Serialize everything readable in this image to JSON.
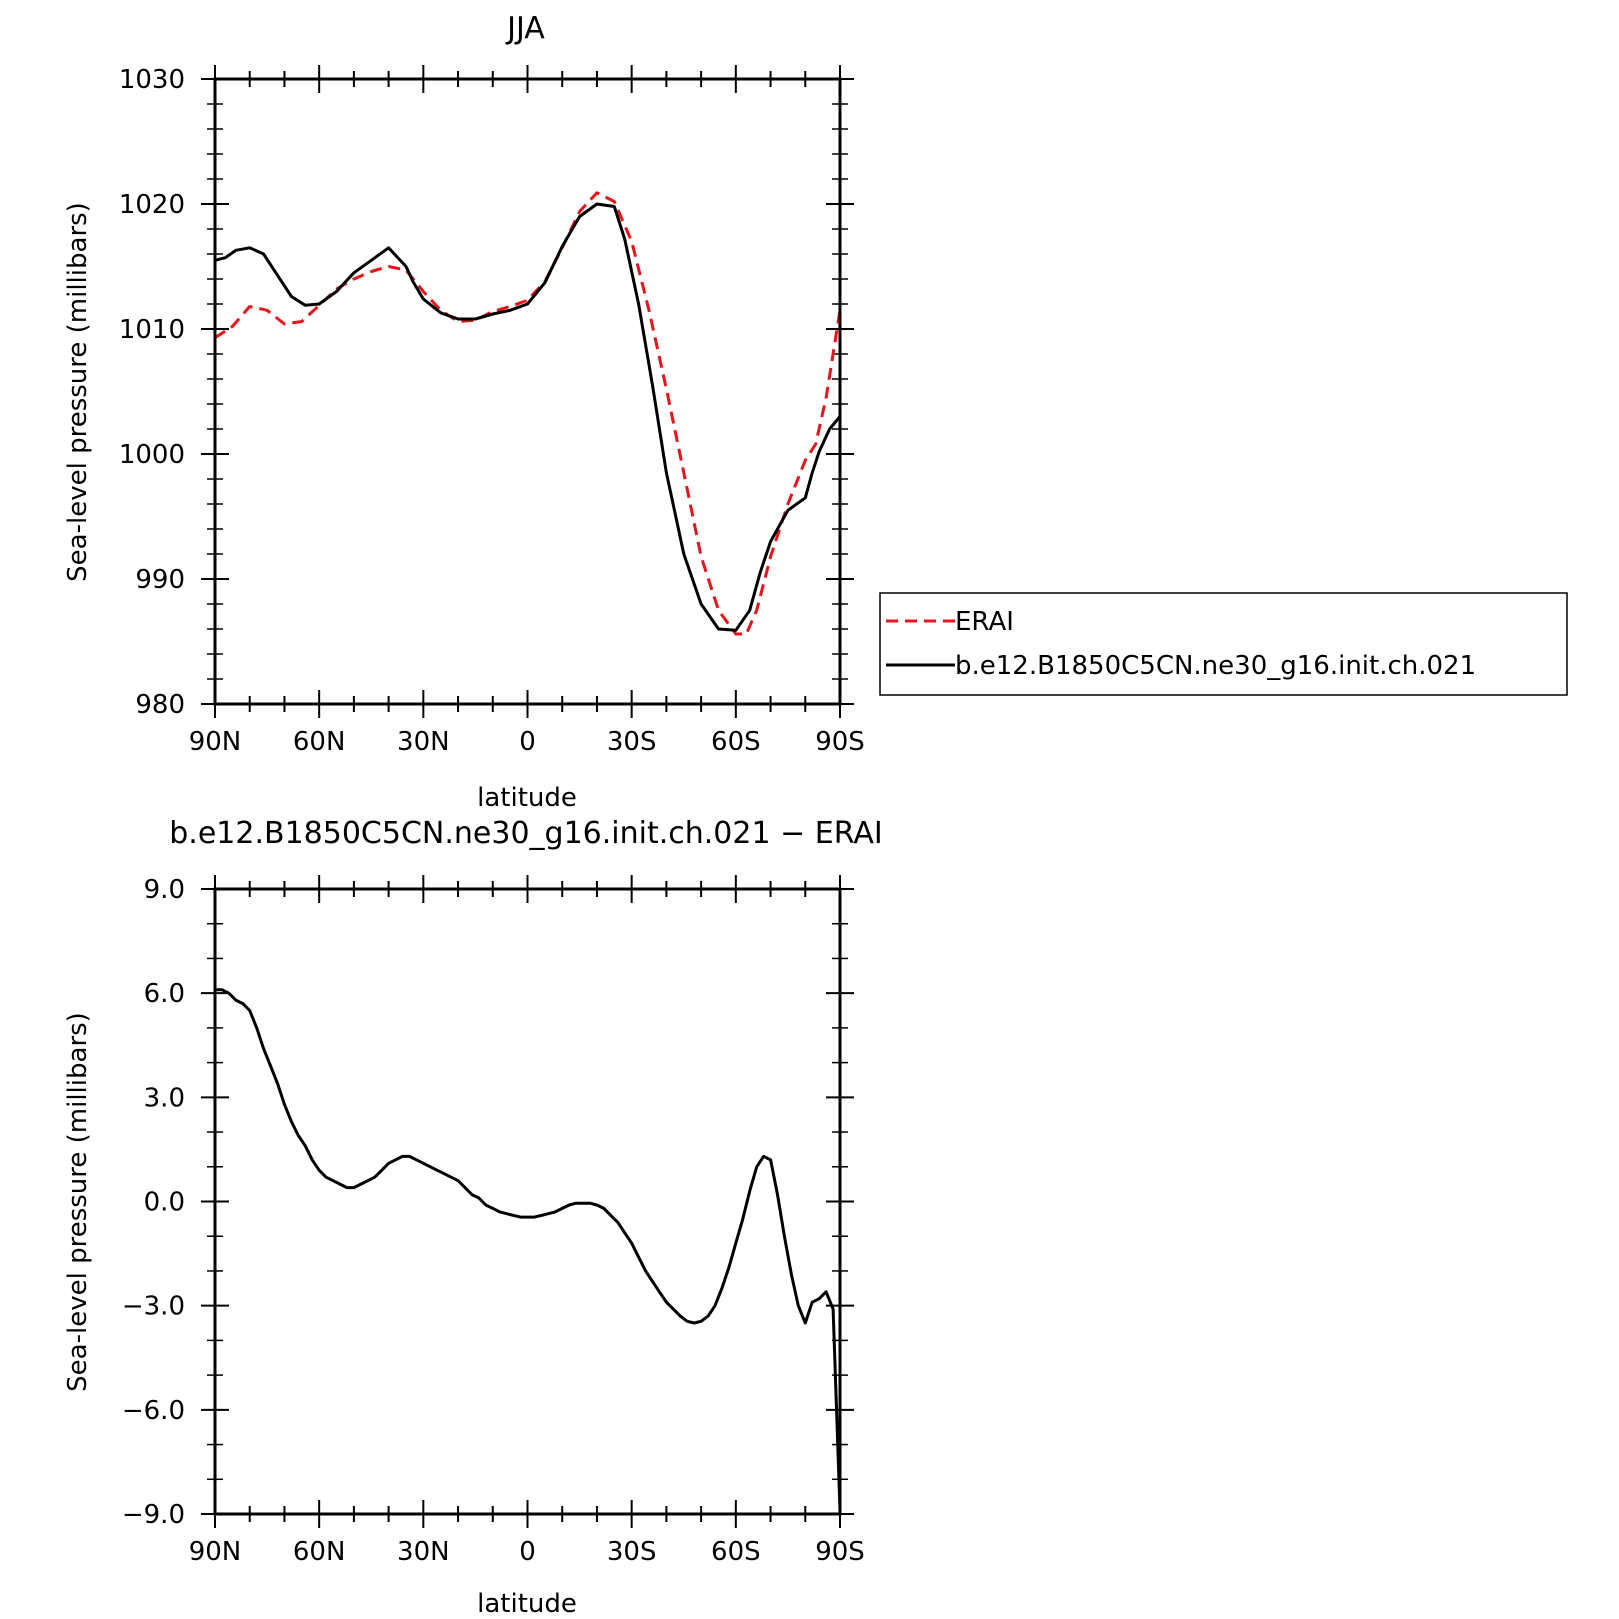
{
  "chart_data": [
    {
      "type": "line",
      "title": "JJA",
      "xlabel": "latitude",
      "ylabel": "Sea-level pressure (millibars)",
      "x_tick_labels": [
        "90N",
        "60N",
        "30N",
        "0",
        "30S",
        "60S",
        "90S"
      ],
      "x_ticks": [
        90,
        60,
        30,
        0,
        -30,
        -60,
        -90
      ],
      "xlim": [
        90,
        -90
      ],
      "ylim": [
        980,
        1030
      ],
      "y_tick_labels": [
        "980",
        "990",
        "1000",
        "1010",
        "1020",
        "1030"
      ],
      "y_ticks": [
        980,
        990,
        1000,
        1010,
        1020,
        1030
      ],
      "grid": false,
      "legend": "right",
      "series": [
        {
          "name": "ERAI",
          "color": "#e8141b",
          "dash": "dashed",
          "x": [
            90,
            85,
            80,
            75,
            70,
            65,
            60,
            55,
            50,
            45,
            40,
            35,
            30,
            25,
            20,
            15,
            10,
            5,
            0,
            -5,
            -10,
            -15,
            -20,
            -25,
            -30,
            -35,
            -40,
            -45,
            -50,
            -55,
            -60,
            -63,
            -66,
            -70,
            -75,
            -80,
            -83,
            -86,
            -90
          ],
          "y": [
            1009.3,
            1010.2,
            1011.8,
            1011.5,
            1010.4,
            1010.6,
            1011.9,
            1013.2,
            1014.0,
            1014.6,
            1015.0,
            1014.7,
            1013.0,
            1011.5,
            1010.6,
            1010.7,
            1011.4,
            1011.8,
            1012.3,
            1013.8,
            1016.5,
            1019.4,
            1020.9,
            1020.2,
            1017.0,
            1011.5,
            1005.2,
            998.5,
            991.8,
            987.5,
            985.6,
            985.6,
            987.5,
            991.8,
            996.0,
            999.5,
            1000.8,
            1004.5,
            1011.5
          ]
        },
        {
          "name": "b.e12.B1850C5CN.ne30_g16.init.ch.021",
          "color": "#000000",
          "dash": "solid",
          "x": [
            90,
            87,
            84,
            80,
            76,
            72,
            68,
            64,
            60,
            55,
            50,
            45,
            40,
            35,
            33,
            30,
            25,
            20,
            15,
            10,
            5,
            0,
            -5,
            -10,
            -15,
            -20,
            -25,
            -28,
            -32,
            -36,
            -40,
            -45,
            -50,
            -55,
            -60,
            -64,
            -67,
            -70,
            -75,
            -80,
            -82,
            -84,
            -87,
            -90
          ],
          "y": [
            1015.5,
            1015.7,
            1016.3,
            1016.5,
            1016.0,
            1014.3,
            1012.6,
            1011.9,
            1012.0,
            1013.0,
            1014.5,
            1015.5,
            1016.5,
            1015.0,
            1013.8,
            1012.4,
            1011.3,
            1010.8,
            1010.8,
            1011.2,
            1011.5,
            1012.0,
            1013.7,
            1016.6,
            1019.0,
            1020.0,
            1019.8,
            1017.2,
            1012.0,
            1005.5,
            998.5,
            992.0,
            988.0,
            986.0,
            985.9,
            987.5,
            990.5,
            993.0,
            995.5,
            996.5,
            998.5,
            1000.2,
            1002.0,
            1003.0
          ]
        }
      ]
    },
    {
      "type": "line",
      "title": "b.e12.B1850C5CN.ne30_g16.init.ch.021 − ERAI",
      "xlabel": "latitude",
      "ylabel": "Sea-level pressure (millibars)",
      "x_tick_labels": [
        "90N",
        "60N",
        "30N",
        "0",
        "30S",
        "60S",
        "90S"
      ],
      "x_ticks": [
        90,
        60,
        30,
        0,
        -30,
        -60,
        -90
      ],
      "xlim": [
        90,
        -90
      ],
      "ylim": [
        -9,
        9
      ],
      "y_tick_labels": [
        "−9.0",
        "−6.0",
        "−3.0",
        "0.0",
        "3.0",
        "6.0",
        "9.0"
      ],
      "y_ticks": [
        -9,
        -6,
        -3,
        0,
        3,
        6,
        9
      ],
      "grid": false,
      "series": [
        {
          "color": "#000000",
          "dash": "solid",
          "x": [
            90,
            88,
            86,
            84,
            82,
            80,
            78,
            76,
            74,
            72,
            70,
            68,
            66,
            64,
            62,
            60,
            58,
            56,
            54,
            52,
            50,
            48,
            46,
            44,
            42,
            40,
            38,
            36,
            34,
            32,
            30,
            28,
            26,
            24,
            22,
            20,
            18,
            16,
            14,
            12,
            10,
            8,
            6,
            4,
            2,
            0,
            -2,
            -4,
            -6,
            -8,
            -10,
            -12,
            -14,
            -16,
            -18,
            -20,
            -22,
            -24,
            -26,
            -28,
            -30,
            -32,
            -34,
            -36,
            -38,
            -40,
            -42,
            -44,
            -46,
            -48,
            -50,
            -52,
            -54,
            -56,
            -58,
            -60,
            -62,
            -64,
            -66,
            -68,
            -70,
            -72,
            -74,
            -76,
            -78,
            -80,
            -82,
            -84,
            -86,
            -88,
            -90
          ],
          "y": [
            6.1,
            6.1,
            6.0,
            5.8,
            5.7,
            5.5,
            5.0,
            4.4,
            3.9,
            3.4,
            2.8,
            2.3,
            1.9,
            1.6,
            1.2,
            0.9,
            0.7,
            0.6,
            0.5,
            0.4,
            0.4,
            0.5,
            0.6,
            0.7,
            0.9,
            1.1,
            1.2,
            1.3,
            1.3,
            1.2,
            1.1,
            1.0,
            0.9,
            0.8,
            0.7,
            0.6,
            0.4,
            0.2,
            0.1,
            -0.1,
            -0.2,
            -0.3,
            -0.35,
            -0.4,
            -0.45,
            -0.45,
            -0.45,
            -0.4,
            -0.35,
            -0.3,
            -0.2,
            -0.1,
            -0.05,
            -0.05,
            -0.05,
            -0.1,
            -0.2,
            -0.4,
            -0.6,
            -0.9,
            -1.2,
            -1.6,
            -2.0,
            -2.3,
            -2.6,
            -2.9,
            -3.1,
            -3.3,
            -3.45,
            -3.5,
            -3.45,
            -3.3,
            -3.0,
            -2.5,
            -1.9,
            -1.2,
            -0.5,
            0.3,
            1.0,
            1.3,
            1.2,
            0.2,
            -1.0,
            -2.1,
            -3.0,
            -3.5,
            -2.9,
            -2.8,
            -2.6,
            -3.1,
            -8.9
          ]
        }
      ]
    }
  ],
  "legend": {
    "items": [
      {
        "label": "ERAI",
        "color": "#e8141b",
        "dash": "dashed"
      },
      {
        "label": "b.e12.B1850C5CN.ne30_g16.init.ch.021",
        "color": "#000000",
        "dash": "solid"
      }
    ]
  }
}
